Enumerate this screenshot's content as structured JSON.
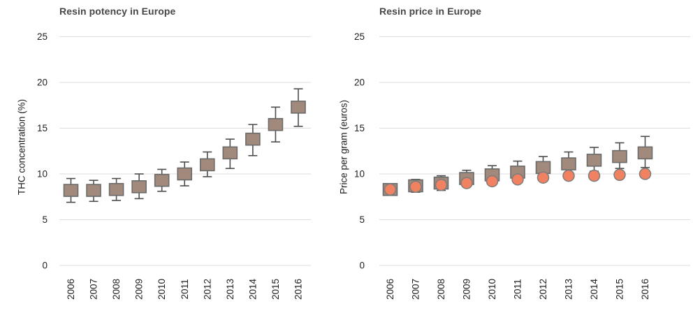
{
  "figure": {
    "background": "#ffffff",
    "colors": {
      "square_fill": "#a18a7c",
      "square_border": "#6b6b6b",
      "circle_fill": "#f08262",
      "circle_border": "#7c7c7c",
      "whisker": "#4d4d4d",
      "gridline": "#dcdcdc",
      "title_text": "#474747",
      "tick_text": "#1f1f1f"
    }
  },
  "chart_data": [
    {
      "type": "scatter",
      "title": "Resin potency in Europe",
      "ylabel": "THC concentration (%)",
      "xlabel": "",
      "ylim": [
        0,
        25
      ],
      "yticks": [
        0,
        5,
        10,
        15,
        20,
        25
      ],
      "grid": "horizontal",
      "legend": "none",
      "categories": [
        "2006",
        "2007",
        "2008",
        "2009",
        "2010",
        "2011",
        "2012",
        "2013",
        "2014",
        "2015",
        "2016"
      ],
      "series": [
        {
          "marker": "square",
          "values": [
            8.2,
            8.2,
            8.3,
            8.6,
            9.3,
            10.0,
            11.0,
            12.3,
            13.8,
            15.4,
            17.3
          ],
          "error_high": [
            9.5,
            9.3,
            9.5,
            10.0,
            10.5,
            11.3,
            12.4,
            13.8,
            15.4,
            17.3,
            19.3
          ],
          "error_low": [
            6.9,
            7.0,
            7.1,
            7.3,
            8.1,
            8.7,
            9.7,
            10.6,
            12.0,
            13.5,
            15.2
          ]
        }
      ]
    },
    {
      "type": "scatter",
      "title": "Resin price in Europe",
      "ylabel": "Price per gram (euros)",
      "xlabel": "",
      "ylim": [
        0,
        25
      ],
      "yticks": [
        0,
        5,
        10,
        15,
        20,
        25
      ],
      "grid": "horizontal",
      "legend": "none",
      "categories": [
        "2006",
        "2007",
        "2008",
        "2009",
        "2010",
        "2011",
        "2012",
        "2013",
        "2014",
        "2015",
        "2016"
      ],
      "series": [
        {
          "marker": "square",
          "values": [
            8.3,
            8.7,
            9.0,
            9.5,
            9.9,
            10.2,
            10.7,
            11.1,
            11.5,
            11.9,
            12.3
          ],
          "error_high": [
            8.9,
            9.4,
            9.8,
            10.4,
            10.9,
            11.4,
            11.9,
            12.4,
            12.9,
            13.4,
            14.1
          ],
          "error_low": [
            7.7,
            8.0,
            8.2,
            8.7,
            9.0,
            9.3,
            9.7,
            10.0,
            10.3,
            10.6,
            10.7
          ]
        },
        {
          "marker": "circle",
          "values": [
            8.3,
            8.6,
            8.8,
            9.0,
            9.2,
            9.4,
            9.6,
            9.8,
            9.8,
            9.9,
            10.0
          ]
        }
      ]
    }
  ]
}
